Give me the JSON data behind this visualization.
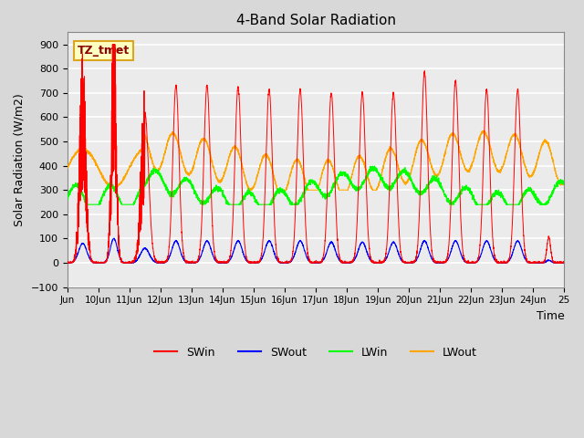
{
  "title": "4-Band Solar Radiation",
  "ylabel": "Solar Radiation (W/m2)",
  "xlabel": "Time",
  "ylim": [
    -100,
    950
  ],
  "annotation_text": "TZ_tmet",
  "annotation_color": "#8B0000",
  "annotation_bg": "#FFFFC0",
  "annotation_border": "#DAA520",
  "fig_bg_color": "#D8D8D8",
  "plot_bg": "#EBEBEB",
  "grid_color": "white",
  "tick_labels": [
    "Jun",
    "10Jun",
    "11Jun",
    "12Jun",
    "13Jun",
    "14Jun",
    "15Jun",
    "16Jun",
    "17Jun",
    "18Jun",
    "19Jun",
    "20Jun",
    "21Jun",
    "22Jun",
    "23Jun",
    "24Jun",
    "25"
  ],
  "tick_positions": [
    0,
    1,
    2,
    3,
    4,
    5,
    6,
    7,
    8,
    9,
    10,
    11,
    12,
    13,
    14,
    15,
    16
  ],
  "yticks": [
    -100,
    0,
    100,
    200,
    300,
    400,
    500,
    600,
    700,
    800,
    900
  ],
  "n_days": 16,
  "SWin_peaks": [
    750,
    860,
    620,
    730,
    730,
    725,
    715,
    715,
    700,
    700,
    700,
    785,
    750,
    715,
    715,
    105
  ],
  "SWin_widths": [
    0.1,
    0.08,
    0.12,
    0.1,
    0.1,
    0.1,
    0.1,
    0.1,
    0.1,
    0.1,
    0.1,
    0.1,
    0.1,
    0.1,
    0.1,
    0.06
  ],
  "SWout_peaks": [
    80,
    100,
    60,
    90,
    90,
    90,
    90,
    90,
    85,
    85,
    85,
    90,
    90,
    90,
    90,
    10
  ],
  "SWout_widths": [
    0.13,
    0.11,
    0.14,
    0.13,
    0.13,
    0.13,
    0.13,
    0.13,
    0.13,
    0.13,
    0.13,
    0.13,
    0.13,
    0.13,
    0.13,
    0.08
  ],
  "legend_labels": [
    "SWin",
    "SWout",
    "LWin",
    "LWout"
  ],
  "legend_colors": [
    "red",
    "blue",
    "lime",
    "orange"
  ]
}
